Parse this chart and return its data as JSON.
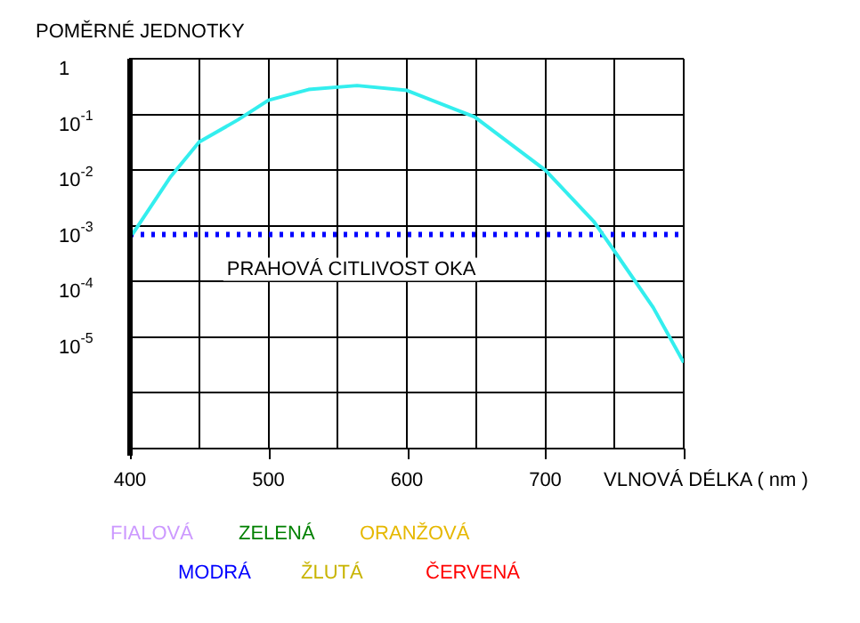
{
  "chart_data": {
    "type": "line",
    "ylabel": "POMĚRNÉ JEDNOTKY",
    "xlabel": "VLNOVÁ DÉLKA ( nm )",
    "x": [
      401.7,
      429,
      450,
      478,
      500,
      529,
      564,
      600,
      649,
      700,
      735,
      750,
      778,
      800
    ],
    "series": [
      {
        "color": "#33eeee",
        "values": [
          0.0007,
          0.0074,
          0.032,
          0.08,
          0.18,
          0.28,
          0.33,
          0.27,
          0.09,
          0.01,
          0.0012,
          0.00035,
          3.4e-05,
          3.5e-06
        ]
      }
    ],
    "log": "y",
    "xlim": [
      400,
      800
    ],
    "ylim": [
      1e-07,
      1
    ],
    "xticks": [
      400,
      {
        "value": 450,
        "label": null
      },
      500,
      {
        "value": 550,
        "label": null
      },
      600,
      {
        "value": 650,
        "label": null
      },
      700,
      {
        "value": 750,
        "label": null
      },
      {
        "value": 800,
        "label": null
      }
    ],
    "yticks": [
      {
        "value": 1e-07,
        "label": null
      },
      {
        "value": 1e-06,
        "label": null
      },
      {
        "value": 1e-05,
        "label": "10$^{-5}$"
      },
      {
        "value": 0.0001,
        "label": "10$^{-4}$"
      },
      {
        "value": 0.001,
        "label": "10$^{-3}$"
      },
      {
        "value": 0.01,
        "label": "10$^{-2}$"
      },
      {
        "value": 0.1,
        "label": "10$^{-1}$"
      },
      {
        "value": 1,
        "label": "1"
      }
    ],
    "grid": true,
    "marker": "none",
    "line_style": "solid",
    "ref_lines": [
      {
        "axis": "y",
        "value": 0.0007,
        "label": "PRAHOVÁ CITLIVOST OKA",
        "color": "#0000ff",
        "line_style": "dotted"
      }
    ],
    "annotations": [
      "FIALOVÁ",
      "ZELENÁ",
      "ORANŽOVÁ",
      "MODRÁ",
      "ŽLUTÁ",
      "ČERVENÁ"
    ]
  }
}
